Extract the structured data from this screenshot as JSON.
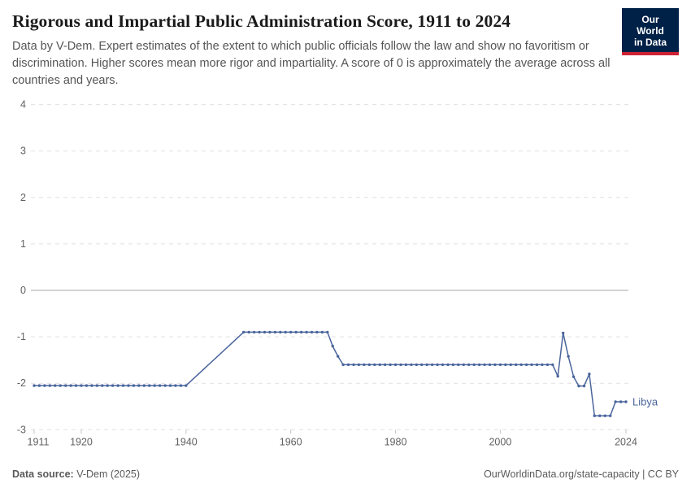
{
  "header": {
    "title": "Rigorous and Impartial Public Administration Score, 1911 to 2024",
    "subtitle": "Data by V-Dem. Expert estimates of the extent to which public officials follow the law and show no favoritism or discrimination. Higher scores mean more rigor and impartiality. A score of 0 is approximately the average across all countries and years.",
    "logo": {
      "line1": "Our World",
      "line2": "in Data"
    }
  },
  "footer": {
    "source_label": "Data source:",
    "source_value": " V-Dem (2025)",
    "right_text": "OurWorldinData.org/state-capacity | CC BY"
  },
  "colors": {
    "line": "#4a659c",
    "logo_bg": "#002147",
    "logo_stripe": "#cf2234",
    "grid": "#e1e1e1",
    "zero_line": "#a9a9a9",
    "tick_text": "#616161"
  },
  "chart_data": {
    "type": "line",
    "title": "Rigorous and Impartial Public Administration Score, 1911 to 2024",
    "xlabel": "",
    "ylabel": "",
    "xlim": [
      1911,
      2024
    ],
    "ylim": [
      -3,
      4
    ],
    "yticks": [
      4,
      3,
      2,
      1,
      0,
      -1,
      -2,
      -3
    ],
    "xticks": [
      1911,
      1920,
      1940,
      1960,
      1980,
      2000,
      2024
    ],
    "grid": "horizontal-dashed, zero-line solid",
    "legend_position": "label-at-line-end",
    "data_gap_note_years": "1941-1950 no data points (straight interpolated segment)",
    "series": [
      {
        "name": "Libya",
        "color": "#4a659c",
        "points": [
          [
            1911,
            -2.05
          ],
          [
            1912,
            -2.05
          ],
          [
            1913,
            -2.05
          ],
          [
            1914,
            -2.05
          ],
          [
            1915,
            -2.05
          ],
          [
            1916,
            -2.05
          ],
          [
            1917,
            -2.05
          ],
          [
            1918,
            -2.05
          ],
          [
            1919,
            -2.05
          ],
          [
            1920,
            -2.05
          ],
          [
            1921,
            -2.05
          ],
          [
            1922,
            -2.05
          ],
          [
            1923,
            -2.05
          ],
          [
            1924,
            -2.05
          ],
          [
            1925,
            -2.05
          ],
          [
            1926,
            -2.05
          ],
          [
            1927,
            -2.05
          ],
          [
            1928,
            -2.05
          ],
          [
            1929,
            -2.05
          ],
          [
            1930,
            -2.05
          ],
          [
            1931,
            -2.05
          ],
          [
            1932,
            -2.05
          ],
          [
            1933,
            -2.05
          ],
          [
            1934,
            -2.05
          ],
          [
            1935,
            -2.05
          ],
          [
            1936,
            -2.05
          ],
          [
            1937,
            -2.05
          ],
          [
            1938,
            -2.05
          ],
          [
            1939,
            -2.05
          ],
          [
            1940,
            -2.05
          ],
          [
            1951,
            -0.9
          ],
          [
            1952,
            -0.9
          ],
          [
            1953,
            -0.9
          ],
          [
            1954,
            -0.9
          ],
          [
            1955,
            -0.9
          ],
          [
            1956,
            -0.9
          ],
          [
            1957,
            -0.9
          ],
          [
            1958,
            -0.9
          ],
          [
            1959,
            -0.9
          ],
          [
            1960,
            -0.9
          ],
          [
            1961,
            -0.9
          ],
          [
            1962,
            -0.9
          ],
          [
            1963,
            -0.9
          ],
          [
            1964,
            -0.9
          ],
          [
            1965,
            -0.9
          ],
          [
            1966,
            -0.9
          ],
          [
            1967,
            -0.9
          ],
          [
            1968,
            -1.2
          ],
          [
            1969,
            -1.42
          ],
          [
            1970,
            -1.6
          ],
          [
            1971,
            -1.6
          ],
          [
            1972,
            -1.6
          ],
          [
            1973,
            -1.6
          ],
          [
            1974,
            -1.6
          ],
          [
            1975,
            -1.6
          ],
          [
            1976,
            -1.6
          ],
          [
            1977,
            -1.6
          ],
          [
            1978,
            -1.6
          ],
          [
            1979,
            -1.6
          ],
          [
            1980,
            -1.6
          ],
          [
            1981,
            -1.6
          ],
          [
            1982,
            -1.6
          ],
          [
            1983,
            -1.6
          ],
          [
            1984,
            -1.6
          ],
          [
            1985,
            -1.6
          ],
          [
            1986,
            -1.6
          ],
          [
            1987,
            -1.6
          ],
          [
            1988,
            -1.6
          ],
          [
            1989,
            -1.6
          ],
          [
            1990,
            -1.6
          ],
          [
            1991,
            -1.6
          ],
          [
            1992,
            -1.6
          ],
          [
            1993,
            -1.6
          ],
          [
            1994,
            -1.6
          ],
          [
            1995,
            -1.6
          ],
          [
            1996,
            -1.6
          ],
          [
            1997,
            -1.6
          ],
          [
            1998,
            -1.6
          ],
          [
            1999,
            -1.6
          ],
          [
            2000,
            -1.6
          ],
          [
            2001,
            -1.6
          ],
          [
            2002,
            -1.6
          ],
          [
            2003,
            -1.6
          ],
          [
            2004,
            -1.6
          ],
          [
            2005,
            -1.6
          ],
          [
            2006,
            -1.6
          ],
          [
            2007,
            -1.6
          ],
          [
            2008,
            -1.6
          ],
          [
            2009,
            -1.6
          ],
          [
            2010,
            -1.6
          ],
          [
            2011,
            -1.85
          ],
          [
            2012,
            -0.92
          ],
          [
            2013,
            -1.42
          ],
          [
            2014,
            -1.86
          ],
          [
            2015,
            -2.06
          ],
          [
            2016,
            -2.06
          ],
          [
            2017,
            -1.8
          ],
          [
            2018,
            -2.7
          ],
          [
            2019,
            -2.7
          ],
          [
            2020,
            -2.7
          ],
          [
            2021,
            -2.7
          ],
          [
            2022,
            -2.4
          ],
          [
            2023,
            -2.4
          ],
          [
            2024,
            -2.4
          ]
        ]
      }
    ]
  }
}
